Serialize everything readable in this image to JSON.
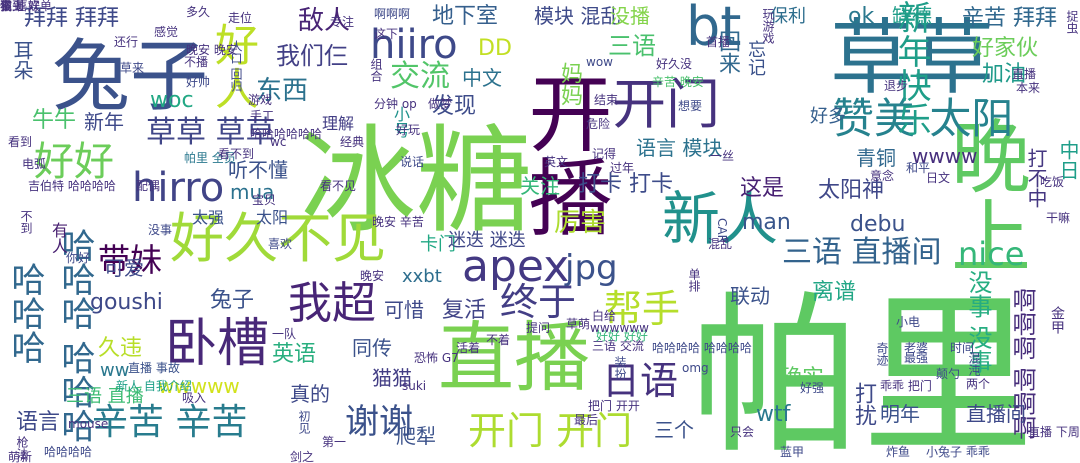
{
  "words": [
    {
      "text": "帕里",
      "color": "#5ec962"
    },
    {
      "text": "冰糖",
      "color": "#7ad151"
    },
    {
      "text": "开播",
      "color": "#440154"
    },
    {
      "text": "草草",
      "color": "#2c728e"
    },
    {
      "text": "晚上",
      "color": "#5ec962"
    },
    {
      "text": "兔子",
      "color": "#3b528b"
    },
    {
      "text": "直播",
      "color": "#7ad151"
    },
    {
      "text": "新人",
      "color": "#21918c"
    },
    {
      "text": "好久不见",
      "color": "#a0da39"
    },
    {
      "text": "bt",
      "color": "#31688e"
    },
    {
      "text": "开门",
      "color": "#46327e"
    },
    {
      "text": "卧槽",
      "color": "#482878"
    },
    {
      "text": "apex",
      "color": "#443983"
    },
    {
      "text": "我超",
      "color": "#482576"
    },
    {
      "text": "赞美 太阳",
      "color": "#26828e"
    },
    {
      "text": "好人",
      "color": "#bddf26"
    },
    {
      "text": "hiiro",
      "color": "#3e4989"
    },
    {
      "text": "hirro",
      "color": "#414487"
    },
    {
      "text": "好好",
      "color": "#6ccd5a"
    },
    {
      "text": "哈哈哈",
      "color": "#31688e"
    },
    {
      "text": "哈哈哈 哈哈哈",
      "color": "#31688e"
    },
    {
      "text": "新年快乐",
      "color": "#1f9e89"
    },
    {
      "text": "辛苦 辛苦",
      "color": "#287c8e"
    },
    {
      "text": "开门 开门",
      "color": "#addc30"
    },
    {
      "text": "谢谢",
      "color": "#3b528b"
    },
    {
      "text": "日语",
      "color": "#46327e"
    },
    {
      "text": "终于",
      "color": "#433e85"
    },
    {
      "text": "帮手",
      "color": "#b5de2b"
    },
    {
      "text": "jpg",
      "color": "#3b528b"
    },
    {
      "text": "交流",
      "color": "#52c569"
    },
    {
      "text": "草草 草草",
      "color": "#404688"
    },
    {
      "text": "三语 直播间",
      "color": "#33638d"
    },
    {
      "text": "nice",
      "color": "#35b779"
    },
    {
      "text": "啊啊啊 啊啊啊",
      "color": "#472d7b"
    },
    {
      "text": "没事 没事",
      "color": "#26ad81"
    },
    {
      "text": "带妹",
      "color": "#440154"
    },
    {
      "text": "敌人",
      "color": "#482475"
    },
    {
      "text": "东西",
      "color": "#2c728e"
    },
    {
      "text": "我们仨",
      "color": "#424086"
    },
    {
      "text": "拜拜 拜拜",
      "color": "#3e4989"
    },
    {
      "text": "辛苦 拜拜",
      "color": "#31688e"
    },
    {
      "text": "地下室",
      "color": "#355f8d"
    },
    {
      "text": "模块 混乱",
      "color": "#3e4a89"
    },
    {
      "text": "没播",
      "color": "#84d44b"
    },
    {
      "text": "保利",
      "color": "#2e6e8e"
    },
    {
      "text": "ok",
      "color": "#2a788e"
    },
    {
      "text": "缺德",
      "color": "#1f9e89"
    },
    {
      "text": "好家伙",
      "color": "#6ccd5a"
    },
    {
      "text": "加油",
      "color": "#1f9a8a"
    },
    {
      "text": "三语",
      "color": "#4ac16d"
    },
    {
      "text": "DD",
      "color": "#c2df23"
    },
    {
      "text": "中文",
      "color": "#2c728e"
    },
    {
      "text": "妈妈",
      "color": "#7ad151"
    },
    {
      "text": "回来",
      "color": "#31688e"
    },
    {
      "text": "忘记",
      "color": "#3b528b"
    },
    {
      "text": "发现",
      "color": "#3e4c8a"
    },
    {
      "text": "woc",
      "color": "#22a884"
    },
    {
      "text": "牛牛",
      "color": "#4ac16d"
    },
    {
      "text": "新年",
      "color": "#3e4989"
    },
    {
      "text": "理解",
      "color": "#433e85"
    },
    {
      "text": "小号",
      "color": "#20928c"
    },
    {
      "text": "好多",
      "color": "#355f8d"
    },
    {
      "text": "语言 模块",
      "color": "#2c728e"
    },
    {
      "text": "青铜",
      "color": "#31688e"
    },
    {
      "text": "wwww",
      "color": "#472f7d"
    },
    {
      "text": "中日",
      "color": "#1f9e89"
    },
    {
      "text": "打不中",
      "color": "#453781"
    },
    {
      "text": "听不懂",
      "color": "#3b528b"
    },
    {
      "text": "mua",
      "color": "#2c728e"
    },
    {
      "text": "关注",
      "color": "#35b779"
    },
    {
      "text": "打卡 打卡",
      "color": "#3e4c8a"
    },
    {
      "text": "这是",
      "color": "#482173"
    },
    {
      "text": "太阳神",
      "color": "#3f4788"
    },
    {
      "text": "厉害",
      "color": "#addc30"
    },
    {
      "text": "man",
      "color": "#39568c"
    },
    {
      "text": "debu",
      "color": "#3b528b"
    },
    {
      "text": "太强",
      "color": "#3b528b"
    },
    {
      "text": "太阳",
      "color": "#3b528b"
    },
    {
      "text": "有人",
      "color": "#482071"
    },
    {
      "text": "可爱",
      "color": "#3e4989"
    },
    {
      "text": "卡门",
      "color": "#22a884"
    },
    {
      "text": "迷迭 迷迭",
      "color": "#3f4788"
    },
    {
      "text": "xxbt",
      "color": "#2e6e8e"
    },
    {
      "text": "goushi",
      "color": "#3e4989"
    },
    {
      "text": "兔子",
      "color": "#3b528b"
    },
    {
      "text": "可惜",
      "color": "#3e4989"
    },
    {
      "text": "复活",
      "color": "#414487"
    },
    {
      "text": "联动",
      "color": "#3b528b"
    },
    {
      "text": "离谱",
      "color": "#21a685"
    },
    {
      "text": "久违",
      "color": "#b8de29"
    },
    {
      "text": "ww",
      "color": "#2a788e"
    },
    {
      "text": "英语",
      "color": "#29af7f"
    },
    {
      "text": "同传",
      "color": "#3b528b"
    },
    {
      "text": "猫猫",
      "color": "#433e85"
    },
    {
      "text": "确实",
      "color": "#5ec962"
    },
    {
      "text": "wwwww",
      "color": "#d2e21b"
    },
    {
      "text": "三语 直播",
      "color": "#3dbc74"
    },
    {
      "text": "真的",
      "color": "#3e4989"
    },
    {
      "text": "wtf",
      "color": "#2a788e"
    },
    {
      "text": "打扰",
      "color": "#3e4989"
    },
    {
      "text": "明年",
      "color": "#3b528b"
    },
    {
      "text": "直播间",
      "color": "#3e4989"
    },
    {
      "text": "语言",
      "color": "#3e4989"
    },
    {
      "text": "爬犁",
      "color": "#3b528b"
    },
    {
      "text": "三个",
      "color": "#3b528b"
    },
    {
      "text": "耳朵",
      "color": "#3b528b"
    },
    {
      "text": "感觉",
      "color": "#46337e"
    },
    {
      "text": "多久",
      "color": "#46337e"
    },
    {
      "text": "好久没",
      "color": "#46327e"
    },
    {
      "text": "辛苦 晚安",
      "color": "#4ac16d"
    },
    {
      "text": "玩游戏",
      "color": "#46327e"
    },
    {
      "text": "退步",
      "color": "#46327e"
    },
    {
      "text": "结束",
      "color": "#46327e"
    },
    {
      "text": "想要",
      "color": "#3e4989"
    },
    {
      "text": "晚安 辛苦",
      "color": "#46327e"
    },
    {
      "text": "说话",
      "color": "#3e4989"
    },
    {
      "text": "喜欢",
      "color": "#3e4989"
    },
    {
      "text": "没事",
      "color": "#3e4989"
    },
    {
      "text": "你好",
      "color": "#3e4989"
    },
    {
      "text": "直播 事故",
      "color": "#3b528b"
    },
    {
      "text": "新人 自我介绍",
      "color": "#1fa088"
    },
    {
      "text": "omg",
      "color": "#3e4989"
    },
    {
      "text": "三语 交流",
      "color": "#46327e"
    },
    {
      "text": "哈哈哈哈 哈哈哈哈",
      "color": "#3e4989"
    },
    {
      "text": "小电",
      "color": "#3e4989"
    },
    {
      "text": "时间",
      "color": "#3e4989"
    },
    {
      "text": "两个",
      "color": "#46327e"
    },
    {
      "text": "老婆",
      "color": "#3e4989"
    },
    {
      "text": "最强",
      "color": "#3e4989"
    },
    {
      "text": "乖乖 把门",
      "color": "#46327e"
    },
    {
      "text": "颠勺",
      "color": "#3e4989"
    },
    {
      "text": "混沌",
      "color": "#3e4989"
    },
    {
      "text": "奇迹",
      "color": "#3e4989"
    },
    {
      "text": "好强",
      "color": "#3e4989"
    },
    {
      "text": "把门 开开",
      "color": "#46327e"
    },
    {
      "text": "只会",
      "color": "#46327e"
    },
    {
      "text": "蓝甲",
      "color": "#3e4989"
    },
    {
      "text": "炸鱼",
      "color": "#3e4989"
    },
    {
      "text": "小兔子 乖乖",
      "color": "#3e4989"
    },
    {
      "text": "哈哈哈哈",
      "color": "#3e4989"
    },
    {
      "text": "初见",
      "color": "#3e4989"
    },
    {
      "text": "晚安",
      "color": "#46327e"
    },
    {
      "text": "suki",
      "color": "#46327e"
    },
    {
      "text": "啊啊啊",
      "color": "#3e4989"
    },
    {
      "text": "还行",
      "color": "#46327e"
    },
    {
      "text": "草来",
      "color": "#3e4989"
    },
    {
      "text": "晚安 晚安",
      "color": "#46327e"
    },
    {
      "text": "好帅",
      "color": "#3e4989"
    },
    {
      "text": "不播",
      "color": "#46327e"
    },
    {
      "text": "人口 回归",
      "color": "#3e4989"
    },
    {
      "text": "直播",
      "color": "#46327e"
    },
    {
      "text": "本来",
      "color": "#46327e"
    },
    {
      "text": "组合",
      "color": "#46327e"
    },
    {
      "text": "专注",
      "color": "#46327e"
    },
    {
      "text": "首播",
      "color": "#46327e"
    },
    {
      "text": "wow",
      "color": "#3e4989"
    },
    {
      "text": "走位",
      "color": "#46327e"
    },
    {
      "text": "分钟 op",
      "color": "#46327e"
    },
    {
      "text": "做梦",
      "color": "#46327e"
    },
    {
      "text": "危险",
      "color": "#46327e"
    },
    {
      "text": "记得",
      "color": "#46327e"
    },
    {
      "text": "过年",
      "color": "#46327e"
    },
    {
      "text": "英文",
      "color": "#46327e"
    },
    {
      "text": "经典",
      "color": "#46327e"
    },
    {
      "text": "好玩",
      "color": "#46327e"
    },
    {
      "text": "帕里 全员",
      "color": "#2a788e"
    },
    {
      "text": "一丝",
      "color": "#46327e"
    },
    {
      "text": "和平",
      "color": "#3e4989"
    },
    {
      "text": "干嘛",
      "color": "#46327e"
    },
    {
      "text": "日文",
      "color": "#46327e"
    },
    {
      "text": "意念",
      "color": "#46327e"
    },
    {
      "text": "吃饭",
      "color": "#46327e"
    },
    {
      "text": "CAR",
      "color": "#3e4989"
    },
    {
      "text": "混乱",
      "color": "#46327e"
    },
    {
      "text": "单排",
      "color": "#46327e"
    },
    {
      "text": "枪法",
      "color": "#46327e"
    },
    {
      "text": "不到",
      "color": "#46327e"
    },
    {
      "text": "不着",
      "color": "#46327e"
    },
    {
      "text": "恐怖 G7",
      "color": "#46327e"
    },
    {
      "text": "活着",
      "color": "#46327e"
    },
    {
      "text": "装扮",
      "color": "#3e4989"
    },
    {
      "text": "mouse",
      "color": "#46327e"
    },
    {
      "text": "吸入",
      "color": "#46327e"
    },
    {
      "text": "电弧",
      "color": "#46327e"
    },
    {
      "text": "看不见",
      "color": "#46327e"
    },
    {
      "text": "配偶",
      "color": "#46327e"
    },
    {
      "text": "宝贝",
      "color": "#46327e"
    },
    {
      "text": "看到",
      "color": "#46327e"
    },
    {
      "text": "看不到",
      "color": "#46327e"
    },
    {
      "text": "哈哈哈哈哈哈",
      "color": "#46327e"
    },
    {
      "text": "wc",
      "color": "#46327e"
    },
    {
      "text": "这下",
      "color": "#46327e"
    },
    {
      "text": "手工",
      "color": "#46327e"
    },
    {
      "text": "游戏",
      "color": "#46327e"
    },
    {
      "text": "金甲",
      "color": "#46327e"
    },
    {
      "text": "一队",
      "color": "#46327e"
    },
    {
      "text": "捉虫",
      "color": "#46327e"
    },
    {
      "text": "好好 好好",
      "color": "#35b779"
    },
    {
      "text": "wwwwww",
      "color": "#46327e"
    },
    {
      "text": "草萌",
      "color": "#46327e"
    },
    {
      "text": "白给",
      "color": "#46327e"
    },
    {
      "text": "提问",
      "color": "#46327e"
    },
    {
      "text": "萌新",
      "color": "#46327e"
    },
    {
      "text": "剑之",
      "color": "#46327e"
    },
    {
      "text": "第一",
      "color": "#46327e"
    },
    {
      "text": "最后",
      "color": "#46327e"
    },
    {
      "text": "吉伯特 哈哈哈哈",
      "color": "#46327e"
    },
    {
      "text": "直播 下周",
      "color": "#46327e"
    },
    {
      "text": "我 喜欢",
      "color": "#46327e"
    },
    {
      "text": "做上 好单",
      "color": "#46327e"
    },
    {
      "text": "不到",
      "color": "#46327e"
    },
    {
      "text": "猫头",
      "color": "#46327e"
    }
  ]
}
